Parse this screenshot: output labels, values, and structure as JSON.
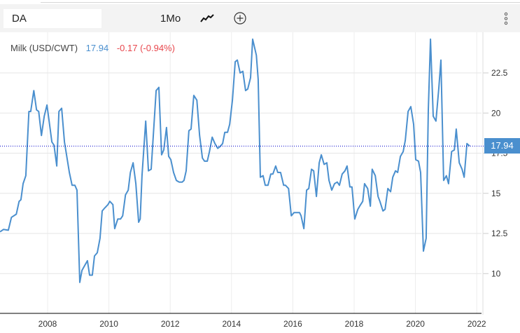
{
  "toolbar": {
    "symbol_value": "DA",
    "period_label": "1Mo",
    "chart_type_icon": "line-chart-icon",
    "compare_icon": "plus-circle-icon",
    "menu_icon": "vertical-dots-icon"
  },
  "legend": {
    "name": "Milk (USD/CWT)",
    "last": "17.94",
    "change": "-0.17 (-0.94%)"
  },
  "colors": {
    "line": "#4a8fce",
    "last_label_bg": "#4a8fce",
    "change": "#e8474d",
    "last_line": "#0000cc"
  },
  "chart_data": {
    "type": "line",
    "title": "",
    "xlabel": "",
    "ylabel": "",
    "xlim": [
      2006.45,
      2022.3
    ],
    "ylim": [
      7.5,
      24.9
    ],
    "grid": true,
    "y_axis_side": "right",
    "x_ticks": [
      "2008",
      "2010",
      "2012",
      "2014",
      "2016",
      "2018",
      "2020",
      "2022"
    ],
    "y_ticks": [
      "10",
      "12.5",
      "15",
      "17.5",
      "20",
      "22.5"
    ],
    "last_value_label": "17.94",
    "series": [
      {
        "x": [
          2006.45,
          2006.56,
          2006.72,
          2006.82,
          2006.98,
          2007.07,
          2007.13,
          2007.2,
          2007.29,
          2007.39,
          2007.45,
          2007.55,
          2007.64,
          2007.71,
          2007.8,
          2007.89,
          2007.98,
          2008.05,
          2008.14,
          2008.21,
          2008.3,
          2008.37,
          2008.46,
          2008.55,
          2008.71,
          2008.8,
          2008.89,
          2008.96,
          2009.05,
          2009.12,
          2009.3,
          2009.37,
          2009.46,
          2009.53,
          2009.62,
          2009.71,
          2009.78,
          2009.87,
          2009.97,
          2010.03,
          2010.13,
          2010.19,
          2010.29,
          2010.38,
          2010.45,
          2010.54,
          2010.63,
          2010.7,
          2010.79,
          2010.88,
          2010.97,
          2011.02,
          2011.08,
          2011.2,
          2011.29,
          2011.38,
          2011.54,
          2011.63,
          2011.72,
          2011.79,
          2011.88,
          2011.95,
          2012.02,
          2012.11,
          2012.2,
          2012.29,
          2012.39,
          2012.45,
          2012.52,
          2012.61,
          2012.68,
          2012.77,
          2012.87,
          2012.96,
          2013.05,
          2013.12,
          2013.21,
          2013.28,
          2013.37,
          2013.46,
          2013.55,
          2013.62,
          2013.71,
          2013.78,
          2013.87,
          2013.94,
          2014.03,
          2014.12,
          2014.19,
          2014.28,
          2014.37,
          2014.46,
          2014.53,
          2014.62,
          2014.69,
          2014.81,
          2014.87,
          2014.94,
          2015.03,
          2015.1,
          2015.19,
          2015.28,
          2015.35,
          2015.44,
          2015.51,
          2015.6,
          2015.7,
          2015.76,
          2015.86,
          2015.95,
          2016.04,
          2016.13,
          2016.22,
          2016.27,
          2016.36,
          2016.45,
          2016.52,
          2016.61,
          2016.68,
          2016.77,
          2016.86,
          2016.93,
          2017.02,
          2017.11,
          2017.18,
          2017.27,
          2017.36,
          2017.45,
          2017.52,
          2017.61,
          2017.7,
          2017.77,
          2017.86,
          2017.93,
          2018.02,
          2018.12,
          2018.18,
          2018.28,
          2018.34,
          2018.44,
          2018.53,
          2018.59,
          2018.69,
          2018.78,
          2018.84,
          2018.94,
          2019.01,
          2019.1,
          2019.19,
          2019.26,
          2019.35,
          2019.42,
          2019.51,
          2019.6,
          2019.67,
          2019.76,
          2019.85,
          2019.94,
          2020.01,
          2020.1,
          2020.17,
          2020.26,
          2020.35,
          2020.42,
          2020.49,
          2020.58,
          2020.67,
          2020.76,
          2020.83,
          2020.92,
          2021.01,
          2021.08,
          2021.18,
          2021.27,
          2021.33,
          2021.43,
          2021.52,
          2021.59,
          2021.68,
          2021.77
        ],
        "y": [
          12.6,
          12.75,
          12.7,
          13.5,
          13.7,
          14.5,
          14.6,
          15.6,
          16.1,
          20.1,
          20.1,
          21.4,
          20.2,
          20.1,
          18.6,
          19.8,
          20.5,
          19.5,
          18.2,
          18.0,
          16.7,
          20.1,
          20.3,
          18.2,
          16.3,
          15.5,
          15.5,
          15.2,
          9.45,
          10.2,
          10.8,
          9.9,
          9.9,
          11.1,
          11.3,
          12.2,
          13.9,
          14.1,
          14.3,
          14.5,
          14.3,
          12.8,
          13.4,
          13.4,
          13.6,
          14.9,
          15.2,
          16.3,
          16.9,
          15.6,
          13.2,
          13.4,
          16.1,
          19.5,
          16.4,
          16.5,
          21.4,
          21.6,
          17.4,
          17.7,
          19.1,
          17.3,
          17.1,
          16.3,
          15.8,
          15.7,
          15.7,
          15.8,
          16.4,
          18.9,
          19.0,
          21.1,
          20.8,
          18.6,
          17.2,
          17.0,
          17.0,
          17.6,
          18.5,
          18.1,
          17.8,
          17.9,
          18.1,
          18.8,
          18.8,
          19.3,
          20.8,
          23.2,
          23.3,
          22.5,
          22.6,
          21.4,
          21.5,
          22.2,
          24.6,
          23.6,
          22.1,
          16.0,
          16.1,
          15.5,
          15.5,
          16.2,
          16.2,
          16.7,
          16.3,
          16.3,
          15.5,
          15.5,
          15.3,
          13.6,
          13.8,
          13.8,
          13.8,
          13.6,
          12.8,
          15.2,
          15.3,
          16.5,
          16.4,
          14.8,
          16.9,
          17.4,
          16.8,
          16.9,
          15.8,
          15.2,
          15.6,
          15.7,
          15.5,
          16.2,
          16.4,
          16.7,
          15.4,
          15.4,
          13.4,
          14.0,
          14.2,
          14.5,
          15.6,
          15.3,
          14.2,
          16.5,
          16.1,
          14.8,
          14.5,
          13.9,
          14.0,
          15.3,
          15.1,
          16.0,
          16.4,
          16.3,
          17.3,
          17.6,
          18.3,
          20.1,
          20.4,
          19.3,
          17.1,
          17.0,
          16.3,
          11.4,
          12.2,
          20.2,
          24.6,
          19.8,
          19.5,
          21.5,
          23.3,
          15.8,
          16.1,
          15.6,
          17.6,
          17.7,
          19.0,
          16.9,
          16.5,
          16.0,
          18.1,
          17.94
        ]
      }
    ]
  }
}
